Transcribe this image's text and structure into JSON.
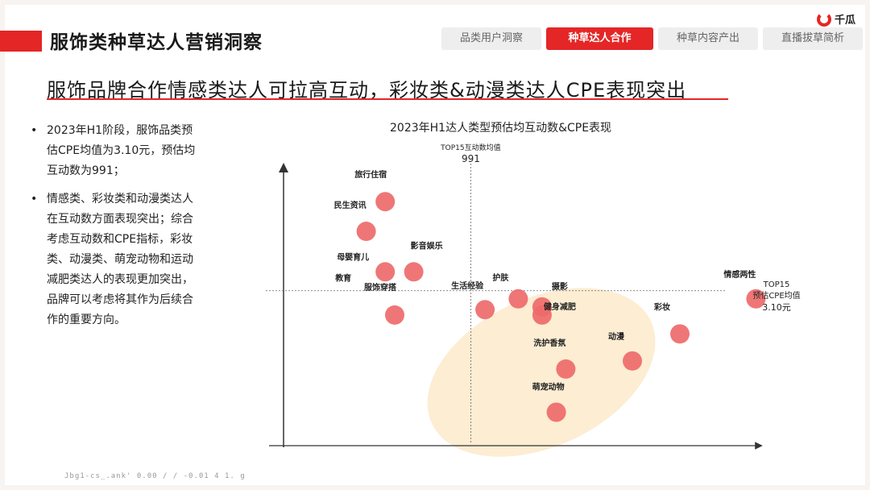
{
  "page_title": "服饰类种草达人营销洞察",
  "brand": {
    "name": "千瓜",
    "icon": "qiangua-logo-icon"
  },
  "tabs": [
    {
      "label": "品类用户洞察",
      "active": false
    },
    {
      "label": "种草达人合作",
      "active": true
    },
    {
      "label": "种草内容产出",
      "active": false
    },
    {
      "label": "直播拔草简析",
      "active": false
    }
  ],
  "headline": "服饰品牌合作情感类达人可拉高互动，彩妆类&动漫类达人CPE表现突出",
  "bullets": [
    "2023年H1阶段，服饰品类预估CPE均值为3.10元，预估均互动数为991；",
    "情感类、彩妆类和动漫类达人在互动数方面表现突出；综合考虑互动数和CPE指标，彩妆类、动漫类、萌宠动物和运动减肥类达人的表现更加突出，品牌可以考虑将其作为后续合作的重要方向。"
  ],
  "footer_text": "Jbg1-cs_.ank'          0.00  /  /   -0.01  4  1.  g",
  "colors": {
    "accent": "#e42626",
    "point": "#ee6a6a",
    "highlight": "#fbeacb"
  },
  "chart_data": {
    "type": "scatter",
    "title": "2023年H1达人类型预估均互动数&CPE表现",
    "xlabel": "",
    "ylabel": "",
    "xlim": [
      0,
      100
    ],
    "ylim": [
      0,
      100
    ],
    "grid": false,
    "vline": {
      "label": "TOP15互动数均值",
      "value_label": "991",
      "x": 36
    },
    "hline": {
      "label_line1": "TOP15",
      "label_line2": "预估CPE均值",
      "value_label": "3.10元",
      "y": 55
    },
    "points": [
      {
        "label": "旅行住宿",
        "x": 18,
        "y": 88
      },
      {
        "label": "民生资讯",
        "x": 14,
        "y": 77
      },
      {
        "label": "影音娱乐",
        "x": 24,
        "y": 62
      },
      {
        "label": "母婴育儿",
        "x": 18,
        "y": 62
      },
      {
        "label": "教育",
        "x": 18,
        "y": 59
      },
      {
        "label": "服饰穿搭",
        "x": 20,
        "y": 46
      },
      {
        "label": "生活经验",
        "x": 39,
        "y": 48
      },
      {
        "label": "护肤",
        "x": 46,
        "y": 52
      },
      {
        "label": "摄影",
        "x": 51,
        "y": 49
      },
      {
        "label": "健身减肥",
        "x": 51,
        "y": 46
      },
      {
        "label": "情感两性",
        "x": 96,
        "y": 52
      },
      {
        "label": "彩妆",
        "x": 80,
        "y": 39
      },
      {
        "label": "动漫",
        "x": 70,
        "y": 29
      },
      {
        "label": "洗护香氛",
        "x": 56,
        "y": 26
      },
      {
        "label": "萌宠动物",
        "x": 54,
        "y": 10
      }
    ]
  }
}
